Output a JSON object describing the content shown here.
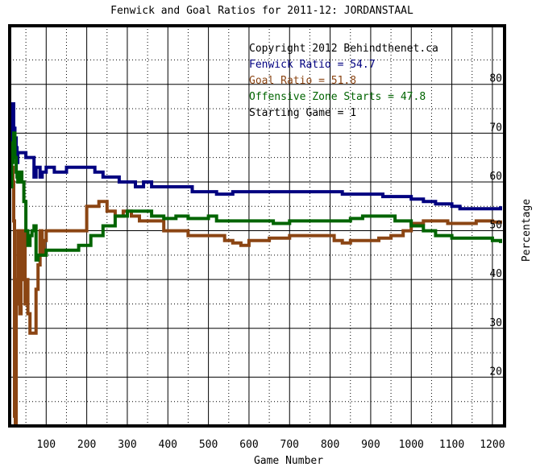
{
  "chart_data": {
    "type": "line",
    "title": "Fenwick and Goal Ratios for 2011-12: JORDANSTAAL",
    "xlabel": "Game Number",
    "ylabel": "Percentage",
    "xlim": [
      10,
      1230
    ],
    "ylim": [
      10,
      92
    ],
    "xticks": [
      100,
      200,
      300,
      400,
      500,
      600,
      700,
      800,
      900,
      1000,
      1100,
      1200
    ],
    "yticks": [
      20,
      30,
      40,
      50,
      60,
      70,
      80
    ],
    "grid": true,
    "legend_lines": [
      {
        "text": "Copyright 2012 Behindthenet.ca",
        "color": "#000000"
      },
      {
        "text": "Fenwick Ratio = 54.7",
        "color": "#000080"
      },
      {
        "text": "Goal Ratio = 51.8",
        "color": "#8b4513"
      },
      {
        "text": "Offensive Zone Starts = 47.8",
        "color": "#006400"
      },
      {
        "text": "Starting Game = 1",
        "color": "#000000"
      }
    ],
    "series": [
      {
        "color": "#000080",
        "x": [
          12,
          15,
          18,
          20,
          23,
          26,
          28,
          30,
          35,
          40,
          50,
          60,
          70,
          75,
          80,
          85,
          90,
          100,
          110,
          120,
          150,
          180,
          200,
          220,
          240,
          260,
          280,
          300,
          320,
          340,
          360,
          380,
          400,
          420,
          440,
          460,
          480,
          500,
          520,
          540,
          560,
          600,
          650,
          700,
          750,
          800,
          830,
          860,
          900,
          930,
          960,
          1000,
          1030,
          1060,
          1080,
          1100,
          1120,
          1150,
          1180,
          1200,
          1220
        ],
        "y": [
          61,
          68,
          76,
          71,
          69,
          67,
          64,
          66,
          66,
          66,
          65,
          65,
          61,
          63,
          63,
          61,
          62,
          63,
          63,
          62,
          63,
          63,
          63,
          62,
          61,
          61,
          60,
          60,
          59,
          60,
          59,
          59,
          59,
          59,
          59,
          58,
          58,
          58,
          57.5,
          57.5,
          58,
          58,
          58,
          58,
          58,
          58,
          57.5,
          57.5,
          57.5,
          57,
          57,
          56.5,
          56,
          55.5,
          55.5,
          55,
          54.5,
          54.5,
          54.5,
          54.5,
          54.7
        ]
      },
      {
        "color": "#8b4513",
        "x": [
          12,
          15,
          18,
          20,
          22,
          24,
          26,
          28,
          30,
          32,
          35,
          38,
          40,
          45,
          48,
          52,
          55,
          60,
          65,
          70,
          75,
          80,
          85,
          90,
          95,
          100,
          110,
          140,
          170,
          200,
          230,
          250,
          270,
          290,
          310,
          330,
          360,
          390,
          420,
          450,
          480,
          510,
          540,
          560,
          580,
          600,
          650,
          700,
          750,
          790,
          810,
          830,
          850,
          870,
          890,
          920,
          950,
          980,
          1000,
          1030,
          1060,
          1090,
          1130,
          1160,
          1200,
          1220
        ],
        "y": [
          59,
          63,
          60,
          52,
          12,
          10,
          35,
          40,
          50,
          45,
          33,
          40,
          50,
          50,
          35,
          40,
          33,
          29,
          29,
          29,
          38,
          43,
          50,
          45,
          48,
          50,
          50,
          50,
          50,
          55,
          56,
          54,
          53,
          54,
          53,
          52,
          52,
          50,
          50,
          49,
          49,
          49,
          48,
          47.5,
          47,
          48,
          48.5,
          49,
          49,
          49,
          48,
          47.5,
          48,
          48,
          48,
          48.5,
          49,
          50,
          51.5,
          52,
          52,
          51.5,
          51.5,
          52,
          51.8,
          51.8
        ]
      },
      {
        "color": "#006400",
        "x": [
          12,
          15,
          18,
          20,
          23,
          26,
          28,
          30,
          35,
          40,
          45,
          50,
          55,
          60,
          65,
          70,
          75,
          80,
          90,
          100,
          120,
          150,
          180,
          210,
          240,
          270,
          300,
          330,
          360,
          390,
          420,
          450,
          480,
          500,
          520,
          540,
          580,
          620,
          660,
          700,
          740,
          780,
          800,
          820,
          850,
          880,
          900,
          930,
          960,
          1000,
          1030,
          1060,
          1100,
          1130,
          1160,
          1200,
          1220
        ],
        "y": [
          59,
          64,
          68,
          70,
          65,
          62,
          61,
          60,
          62,
          60,
          56,
          50,
          47,
          49,
          50,
          51,
          44,
          45,
          45,
          46,
          46,
          46,
          47,
          49,
          51,
          53,
          54,
          54,
          53,
          52.5,
          53,
          52.5,
          52.5,
          53,
          52,
          52,
          52,
          52,
          51.5,
          52,
          52,
          52,
          52,
          52,
          52.5,
          53,
          53,
          53,
          52,
          51,
          50,
          49,
          48.5,
          48.5,
          48.5,
          48,
          47.8
        ]
      }
    ]
  }
}
